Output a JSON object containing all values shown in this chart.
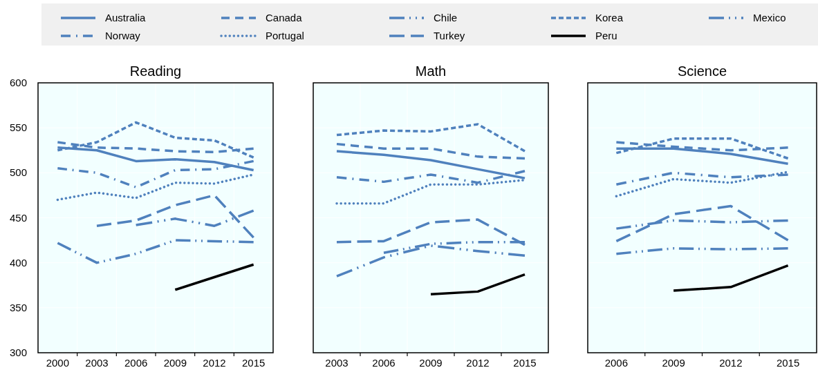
{
  "chart_data": [
    {
      "type": "line",
      "title": "Reading",
      "categories": [
        "2000",
        "2003",
        "2006",
        "2009",
        "2012",
        "2015"
      ],
      "ylim": [
        300,
        600
      ],
      "yticks": [
        300,
        350,
        400,
        450,
        500,
        550,
        600
      ],
      "grid": true,
      "legend": "top",
      "series": [
        {
          "name": "Australia",
          "color": "#4f81bd",
          "line_style": "solid",
          "values": [
            528,
            525,
            513,
            515,
            512,
            503
          ]
        },
        {
          "name": "Canada",
          "color": "#4f81bd",
          "line_style": "dashed",
          "values": [
            534,
            528,
            527,
            524,
            523,
            527
          ]
        },
        {
          "name": "Chile",
          "color": "#4f81bd",
          "line_style": "longdashdotdot",
          "values": [
            null,
            null,
            442,
            449,
            441,
            458
          ]
        },
        {
          "name": "Korea",
          "color": "#4f81bd",
          "line_style": "shortdash",
          "values": [
            525,
            534,
            556,
            539,
            536,
            517
          ]
        },
        {
          "name": "Mexico",
          "color": "#4f81bd",
          "line_style": "longdashdotdot",
          "values": [
            422,
            400,
            410,
            425,
            424,
            423
          ]
        },
        {
          "name": "Norway",
          "color": "#4f81bd",
          "line_style": "dashdot",
          "values": [
            505,
            500,
            484,
            503,
            504,
            513
          ]
        },
        {
          "name": "Portugal",
          "color": "#4f81bd",
          "line_style": "dotted",
          "values": [
            470,
            478,
            472,
            489,
            488,
            498
          ]
        },
        {
          "name": "Turkey",
          "color": "#4f81bd",
          "line_style": "longdash",
          "values": [
            null,
            441,
            447,
            464,
            475,
            428
          ]
        },
        {
          "name": "Peru",
          "color": "#000000",
          "line_style": "solid",
          "values": [
            null,
            null,
            null,
            370,
            384,
            398
          ]
        }
      ]
    },
    {
      "type": "line",
      "title": "Math",
      "categories": [
        "2003",
        "2006",
        "2009",
        "2012",
        "2015"
      ],
      "ylim": [
        300,
        600
      ],
      "yticks": [
        300,
        350,
        400,
        450,
        500,
        550,
        600
      ],
      "grid": true,
      "tick_labels": "x",
      "series": [
        {
          "color": "#4f81bd",
          "line_style": "solid",
          "values": [
            524,
            520,
            514,
            504,
            494
          ]
        },
        {
          "color": "#4f81bd",
          "line_style": "dashed",
          "values": [
            532,
            527,
            527,
            518,
            516
          ]
        },
        {
          "color": "#4f81bd",
          "line_style": "longdashdotdot",
          "values": [
            null,
            411,
            421,
            423,
            423
          ]
        },
        {
          "color": "#4f81bd",
          "line_style": "shortdash",
          "values": [
            542,
            547,
            546,
            554,
            524
          ]
        },
        {
          "color": "#4f81bd",
          "line_style": "longdashdotdot",
          "values": [
            385,
            406,
            419,
            413,
            408
          ]
        },
        {
          "color": "#4f81bd",
          "line_style": "dashdot",
          "values": [
            495,
            490,
            498,
            489,
            502
          ]
        },
        {
          "color": "#4f81bd",
          "line_style": "dotted",
          "values": [
            466,
            466,
            487,
            487,
            492
          ]
        },
        {
          "color": "#4f81bd",
          "line_style": "longdash",
          "values": [
            423,
            424,
            445,
            448,
            420
          ]
        },
        {
          "color": "#000000",
          "line_style": "solid",
          "values": [
            null,
            null,
            365,
            368,
            387
          ]
        }
      ]
    },
    {
      "type": "line",
      "title": "Science",
      "categories": [
        "2006",
        "2009",
        "2012",
        "2015"
      ],
      "ylim": [
        300,
        600
      ],
      "yticks": [
        300,
        350,
        400,
        450,
        500,
        550,
        600
      ],
      "grid": true,
      "tick_labels": "x",
      "series": [
        {
          "color": "#4f81bd",
          "line_style": "solid",
          "values": [
            527,
            527,
            521,
            510
          ]
        },
        {
          "color": "#4f81bd",
          "line_style": "dashed",
          "values": [
            534,
            529,
            525,
            528
          ]
        },
        {
          "color": "#4f81bd",
          "line_style": "longdashdotdot",
          "values": [
            438,
            447,
            445,
            447
          ]
        },
        {
          "color": "#4f81bd",
          "line_style": "shortdash",
          "values": [
            522,
            538,
            538,
            516
          ]
        },
        {
          "color": "#4f81bd",
          "line_style": "longdashdotdot",
          "values": [
            410,
            416,
            415,
            416
          ]
        },
        {
          "color": "#4f81bd",
          "line_style": "dashdot",
          "values": [
            487,
            500,
            495,
            498
          ]
        },
        {
          "color": "#4f81bd",
          "line_style": "dotted",
          "values": [
            474,
            493,
            489,
            501
          ]
        },
        {
          "color": "#4f81bd",
          "line_style": "longdash",
          "values": [
            424,
            454,
            463,
            425
          ]
        },
        {
          "color": "#000000",
          "line_style": "solid",
          "values": [
            null,
            369,
            373,
            397
          ]
        }
      ]
    }
  ]
}
